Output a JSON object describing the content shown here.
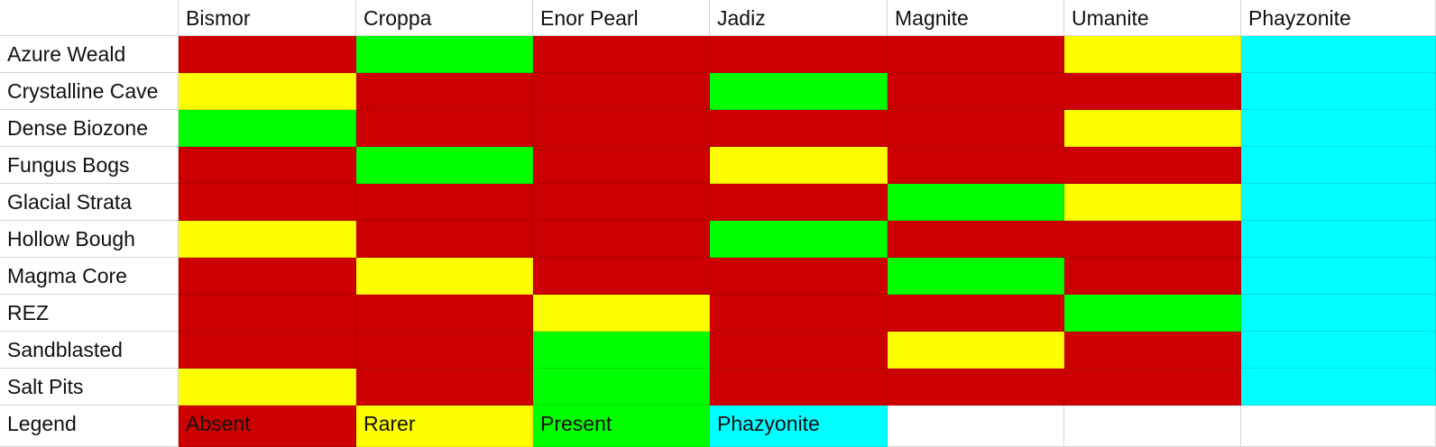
{
  "table": {
    "columns": [
      "Bismor",
      "Croppa",
      "Enor Pearl",
      "Jadiz",
      "Magnite",
      "Umanite",
      "Phayzonite"
    ],
    "rows": [
      {
        "label": "Azure Weald",
        "colors": [
          "#cc0000",
          "#00ff00",
          "#cc0000",
          "#cc0000",
          "#cc0000",
          "#ffff00",
          "#00ffff"
        ]
      },
      {
        "label": "Crystalline Cave",
        "colors": [
          "#ffff00",
          "#cc0000",
          "#cc0000",
          "#00ff00",
          "#cc0000",
          "#cc0000",
          "#00ffff"
        ]
      },
      {
        "label": "Dense Biozone",
        "colors": [
          "#00ff00",
          "#cc0000",
          "#cc0000",
          "#cc0000",
          "#cc0000",
          "#ffff00",
          "#00ffff"
        ]
      },
      {
        "label": "Fungus Bogs",
        "colors": [
          "#cc0000",
          "#00ff00",
          "#cc0000",
          "#ffff00",
          "#cc0000",
          "#cc0000",
          "#00ffff"
        ]
      },
      {
        "label": "Glacial Strata",
        "colors": [
          "#cc0000",
          "#cc0000",
          "#cc0000",
          "#cc0000",
          "#00ff00",
          "#ffff00",
          "#00ffff"
        ]
      },
      {
        "label": "Hollow Bough",
        "colors": [
          "#ffff00",
          "#cc0000",
          "#cc0000",
          "#00ff00",
          "#cc0000",
          "#cc0000",
          "#00ffff"
        ]
      },
      {
        "label": "Magma Core",
        "colors": [
          "#cc0000",
          "#ffff00",
          "#cc0000",
          "#cc0000",
          "#00ff00",
          "#cc0000",
          "#00ffff"
        ]
      },
      {
        "label": "REZ",
        "colors": [
          "#cc0000",
          "#cc0000",
          "#ffff00",
          "#cc0000",
          "#cc0000",
          "#00ff00",
          "#00ffff"
        ]
      },
      {
        "label": "Sandblasted",
        "colors": [
          "#cc0000",
          "#cc0000",
          "#00ff00",
          "#cc0000",
          "#ffff00",
          "#cc0000",
          "#00ffff"
        ]
      },
      {
        "label": "Salt Pits",
        "colors": [
          "#ffff00",
          "#cc0000",
          "#00ff00",
          "#cc0000",
          "#cc0000",
          "#cc0000",
          "#00ffff"
        ]
      }
    ],
    "legend": {
      "label": "Legend",
      "items": [
        {
          "label": "Absent",
          "color": "#cc0000"
        },
        {
          "label": "Rarer",
          "color": "#ffff00"
        },
        {
          "label": "Present",
          "color": "#00ff00"
        },
        {
          "label": "Phazyonite",
          "color": "#00ffff"
        }
      ]
    }
  }
}
